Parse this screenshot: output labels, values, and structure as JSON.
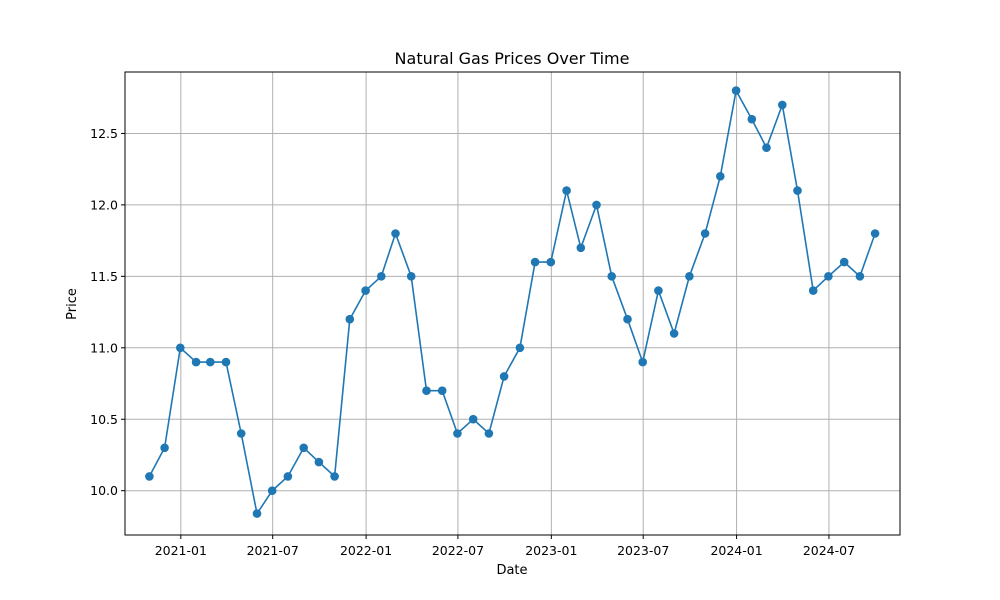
{
  "chart_data": {
    "type": "line",
    "title": "Natural Gas Prices Over Time",
    "xlabel": "Date",
    "ylabel": "Price",
    "grid": true,
    "color": "#1f77b4",
    "marker": "circle",
    "xlim": [
      "2020-09-13",
      "2024-11-18"
    ],
    "ylim": [
      9.69,
      12.93
    ],
    "x_ticks": [
      {
        "date": "2021-01-01",
        "label": "2021-01"
      },
      {
        "date": "2021-07-01",
        "label": "2021-07"
      },
      {
        "date": "2022-01-01",
        "label": "2022-01"
      },
      {
        "date": "2022-07-01",
        "label": "2022-07"
      },
      {
        "date": "2023-01-01",
        "label": "2023-01"
      },
      {
        "date": "2023-07-01",
        "label": "2023-07"
      },
      {
        "date": "2024-01-01",
        "label": "2024-01"
      },
      {
        "date": "2024-07-01",
        "label": "2024-07"
      }
    ],
    "y_ticks": [
      {
        "value": 10.0,
        "label": "10.0"
      },
      {
        "value": 10.5,
        "label": "10.5"
      },
      {
        "value": 11.0,
        "label": "11.0"
      },
      {
        "value": 11.5,
        "label": "11.5"
      },
      {
        "value": 12.0,
        "label": "12.0"
      },
      {
        "value": 12.5,
        "label": "12.5"
      }
    ],
    "series": [
      {
        "x": [
          "2020-10-31",
          "2020-11-30",
          "2020-12-31",
          "2021-01-31",
          "2021-02-28",
          "2021-03-31",
          "2021-04-30",
          "2021-05-31",
          "2021-06-30",
          "2021-07-31",
          "2021-08-31",
          "2021-09-30",
          "2021-10-31",
          "2021-11-30",
          "2021-12-31",
          "2022-01-31",
          "2022-02-28",
          "2022-03-31",
          "2022-04-30",
          "2022-05-31",
          "2022-06-30",
          "2022-07-31",
          "2022-08-31",
          "2022-09-30",
          "2022-10-31",
          "2022-11-30",
          "2022-12-31",
          "2023-01-31",
          "2023-02-28",
          "2023-03-31",
          "2023-04-30",
          "2023-05-31",
          "2023-06-30",
          "2023-07-31",
          "2023-08-31",
          "2023-09-30",
          "2023-10-31",
          "2023-11-30",
          "2023-12-31",
          "2024-01-31",
          "2024-02-29",
          "2024-03-31",
          "2024-04-30",
          "2024-05-31",
          "2024-06-30",
          "2024-07-31",
          "2024-08-31",
          "2024-09-30"
        ],
        "values": [
          10.1,
          10.3,
          11.0,
          10.9,
          10.9,
          10.9,
          10.4,
          9.84,
          10.0,
          10.1,
          10.3,
          10.2,
          10.1,
          11.2,
          11.4,
          11.5,
          11.8,
          11.5,
          10.7,
          10.7,
          10.4,
          10.5,
          10.4,
          10.8,
          11.0,
          11.6,
          11.6,
          12.1,
          11.7,
          12.0,
          11.5,
          11.2,
          10.9,
          11.4,
          11.1,
          11.5,
          11.8,
          12.2,
          12.8,
          12.6,
          12.4,
          12.7,
          12.1,
          11.4,
          11.5,
          11.6,
          11.5,
          11.8
        ]
      }
    ]
  }
}
